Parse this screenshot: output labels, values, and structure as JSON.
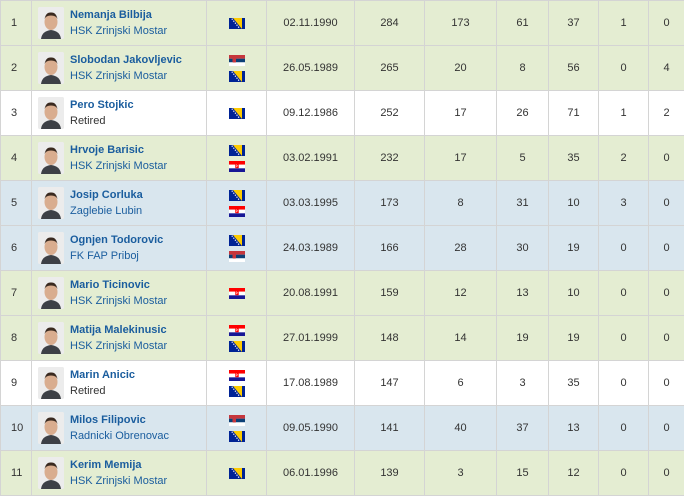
{
  "flag_colors": {
    "bih": {
      "bg": "#002395",
      "triangle": "#fecb00",
      "stars": "#ffffff"
    },
    "srb": {
      "top": "#c6363c",
      "mid": "#0c4076",
      "bottom": "#ffffff"
    },
    "cro": {
      "top": "#ff0000",
      "mid": "#ffffff",
      "bottom": "#171796"
    }
  },
  "rows": [
    {
      "rank": "1",
      "name": "Nemanja Bilbija",
      "club": "HSK Zrinjski Mostar",
      "club_link": true,
      "flags": [
        "bih-flag-icon"
      ],
      "birth": "02.11.1990",
      "c1": "284",
      "c2": "173",
      "c3": "61",
      "c4": "37",
      "c5": "1",
      "c6": "0",
      "color": "green"
    },
    {
      "rank": "2",
      "name": "Slobodan Jakovljevic",
      "club": "HSK Zrinjski Mostar",
      "club_link": true,
      "flags": [
        "srb-flag-icon",
        "bih-flag-icon"
      ],
      "birth": "26.05.1989",
      "c1": "265",
      "c2": "20",
      "c3": "8",
      "c4": "56",
      "c5": "0",
      "c6": "4",
      "color": "green"
    },
    {
      "rank": "3",
      "name": "Pero Stojkic",
      "club": "Retired",
      "club_link": false,
      "flags": [
        "bih-flag-icon"
      ],
      "birth": "09.12.1986",
      "c1": "252",
      "c2": "17",
      "c3": "26",
      "c4": "71",
      "c5": "1",
      "c6": "2",
      "color": "white"
    },
    {
      "rank": "4",
      "name": "Hrvoje Barisic",
      "club": "HSK Zrinjski Mostar",
      "club_link": true,
      "flags": [
        "bih-flag-icon",
        "cro-flag-icon"
      ],
      "birth": "03.02.1991",
      "c1": "232",
      "c2": "17",
      "c3": "5",
      "c4": "35",
      "c5": "2",
      "c6": "0",
      "color": "green"
    },
    {
      "rank": "5",
      "name": "Josip Corluka",
      "club": "Zaglebie Lubin",
      "club_link": true,
      "flags": [
        "bih-flag-icon",
        "cro-flag-icon"
      ],
      "birth": "03.03.1995",
      "c1": "173",
      "c2": "8",
      "c3": "31",
      "c4": "10",
      "c5": "3",
      "c6": "0",
      "color": "blue"
    },
    {
      "rank": "6",
      "name": "Ognjen Todorovic",
      "club": "FK FAP Priboj",
      "club_link": true,
      "flags": [
        "bih-flag-icon",
        "srb-flag-icon"
      ],
      "birth": "24.03.1989",
      "c1": "166",
      "c2": "28",
      "c3": "30",
      "c4": "19",
      "c5": "0",
      "c6": "0",
      "color": "blue"
    },
    {
      "rank": "7",
      "name": "Mario Ticinovic",
      "club": "HSK Zrinjski Mostar",
      "club_link": true,
      "flags": [
        "cro-flag-icon"
      ],
      "birth": "20.08.1991",
      "c1": "159",
      "c2": "12",
      "c3": "13",
      "c4": "10",
      "c5": "0",
      "c6": "0",
      "color": "green"
    },
    {
      "rank": "8",
      "name": "Matija Malekinusic",
      "club": "HSK Zrinjski Mostar",
      "club_link": true,
      "flags": [
        "cro-flag-icon",
        "bih-flag-icon"
      ],
      "birth": "27.01.1999",
      "c1": "148",
      "c2": "14",
      "c3": "19",
      "c4": "19",
      "c5": "0",
      "c6": "0",
      "color": "green"
    },
    {
      "rank": "9",
      "name": "Marin Anicic",
      "club": "Retired",
      "club_link": false,
      "flags": [
        "cro-flag-icon",
        "bih-flag-icon"
      ],
      "birth": "17.08.1989",
      "c1": "147",
      "c2": "6",
      "c3": "3",
      "c4": "35",
      "c5": "0",
      "c6": "0",
      "color": "white"
    },
    {
      "rank": "10",
      "name": "Milos Filipovic",
      "club": "Radnicki Obrenovac",
      "club_link": true,
      "flags": [
        "srb-flag-icon",
        "bih-flag-icon"
      ],
      "birth": "09.05.1990",
      "c1": "141",
      "c2": "40",
      "c3": "37",
      "c4": "13",
      "c5": "0",
      "c6": "0",
      "color": "blue"
    },
    {
      "rank": "11",
      "name": "Kerim Memija",
      "club": "HSK Zrinjski Mostar",
      "club_link": true,
      "flags": [
        "bih-flag-icon"
      ],
      "birth": "06.01.1996",
      "c1": "139",
      "c2": "3",
      "c3": "15",
      "c4": "12",
      "c5": "0",
      "c6": "0",
      "color": "green"
    }
  ]
}
